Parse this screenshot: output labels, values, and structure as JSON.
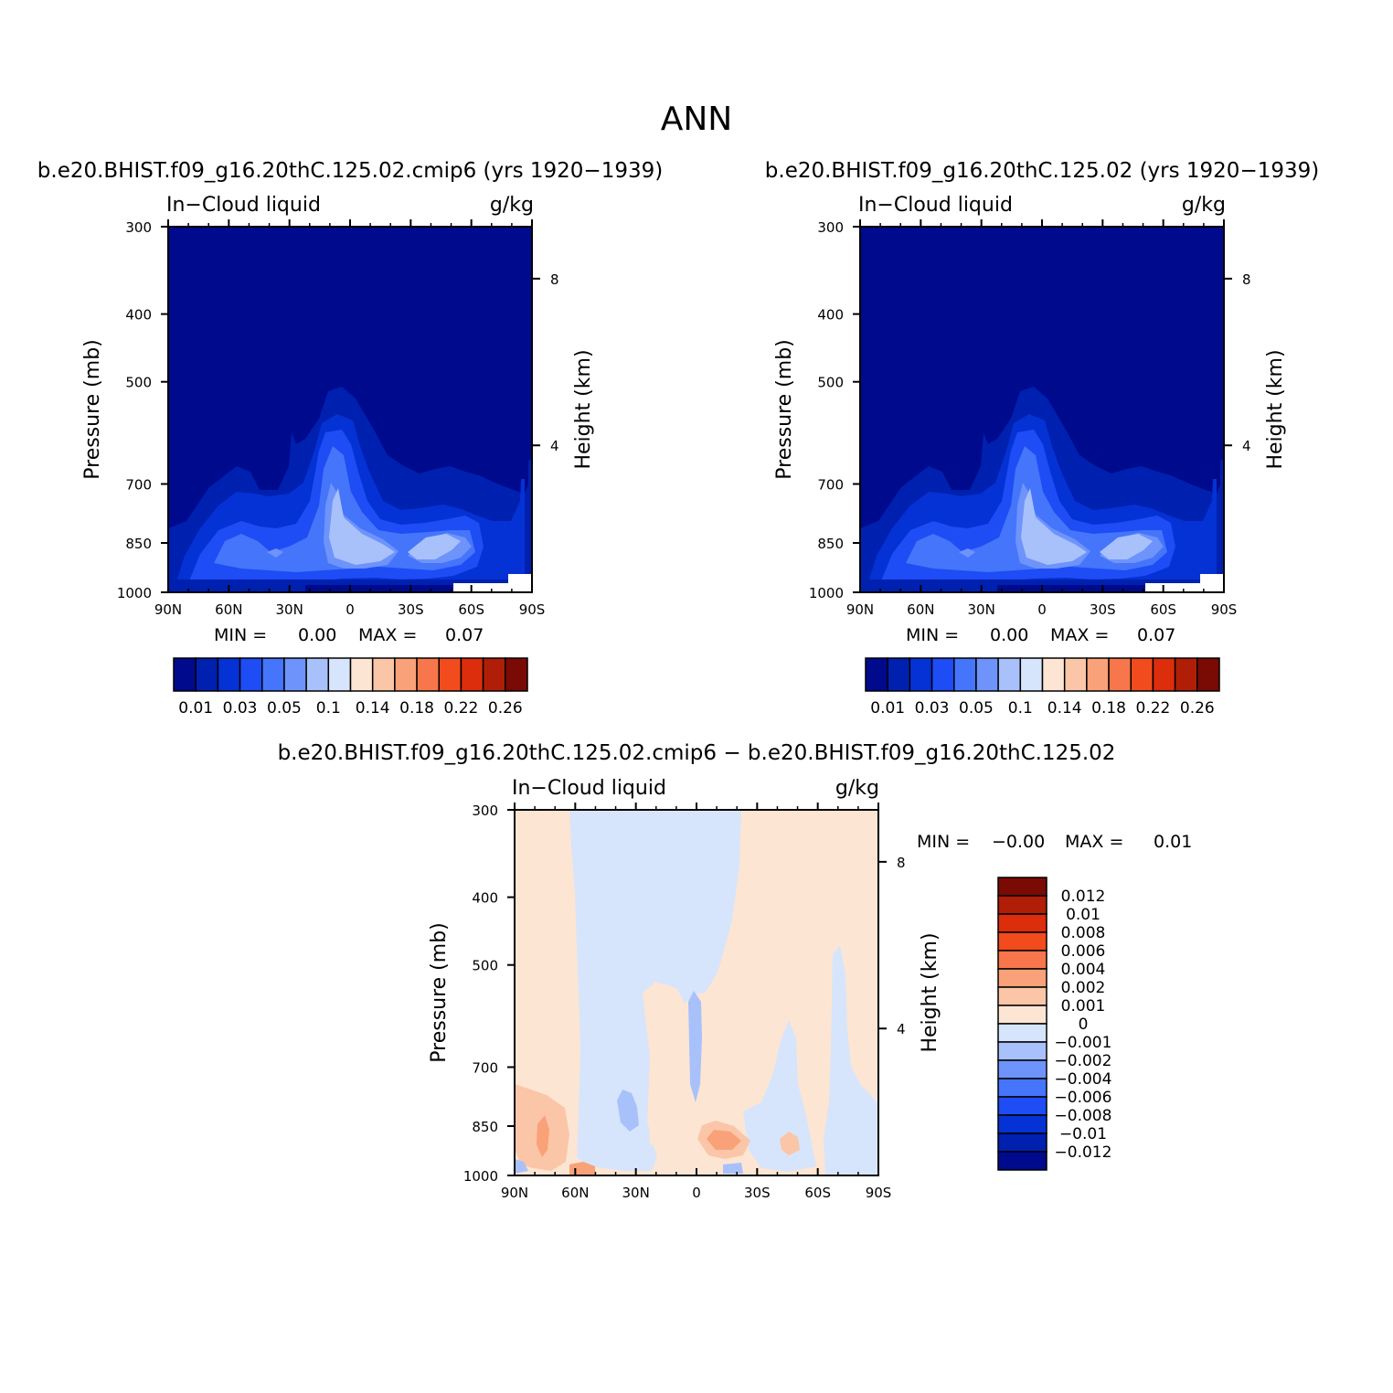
{
  "page_title": "ANN",
  "chart_data": [
    {
      "type": "heatmap",
      "title": "b.e20.BHIST.f09_g16.20thC.125.02.cmip6 (yrs 1920−1939)",
      "variable": "In−Cloud liquid",
      "units": "g/kg",
      "ylabel": "Pressure (mb)",
      "y2label": "Height (km)",
      "x_tick_labels": [
        "90N",
        "60N",
        "30N",
        "0",
        "30S",
        "60S",
        "90S"
      ],
      "x_ticks": [
        90,
        60,
        30,
        0,
        -30,
        -60,
        -90
      ],
      "y_tick_labels": [
        "300",
        "400",
        "500",
        "700",
        "850",
        "1000"
      ],
      "y_ticks": [
        300,
        400,
        500,
        700,
        850,
        1000
      ],
      "y2_tick_labels": [
        "8",
        "4"
      ],
      "y2_ticks": [
        8,
        4
      ],
      "y_scale": "log (pressure)",
      "xlim": [
        90,
        -90
      ],
      "ylim": [
        1000,
        300
      ],
      "min_label": "MIN =",
      "min_value": "0.00",
      "max_label": "MAX =",
      "max_value": "0.07",
      "colorbar": {
        "orientation": "horizontal",
        "levels": [
          0.01,
          0.02,
          0.03,
          0.04,
          0.05,
          0.07,
          0.1,
          0.12,
          0.14,
          0.16,
          0.18,
          0.2,
          0.22,
          0.24,
          0.26
        ],
        "tick_labels": [
          "0.01",
          "0.03",
          "0.05",
          "0.1",
          "0.14",
          "0.18",
          "0.22",
          "0.26"
        ],
        "colors": [
          "#000a8c",
          "#0020b0",
          "#0532d4",
          "#1e4cf5",
          "#4575fb",
          "#6e94fb",
          "#a8c1fb",
          "#d6e5fb",
          "#fde5d3",
          "#fbc6a7",
          "#f9a178",
          "#f7764b",
          "#f24b1e",
          "#dc2d0c",
          "#b01e08",
          "#7a0a04"
        ]
      }
    },
    {
      "type": "heatmap",
      "title": "b.e20.BHIST.f09_g16.20thC.125.02 (yrs 1920−1939)",
      "variable": "In−Cloud liquid",
      "units": "g/kg",
      "ylabel": "Pressure (mb)",
      "y2label": "Height (km)",
      "x_tick_labels": [
        "90N",
        "60N",
        "30N",
        "0",
        "30S",
        "60S",
        "90S"
      ],
      "x_ticks": [
        90,
        60,
        30,
        0,
        -30,
        -60,
        -90
      ],
      "y_tick_labels": [
        "300",
        "400",
        "500",
        "700",
        "850",
        "1000"
      ],
      "y_ticks": [
        300,
        400,
        500,
        700,
        850,
        1000
      ],
      "y2_tick_labels": [
        "8",
        "4"
      ],
      "y2_ticks": [
        8,
        4
      ],
      "y_scale": "log (pressure)",
      "xlim": [
        90,
        -90
      ],
      "ylim": [
        1000,
        300
      ],
      "min_label": "MIN =",
      "min_value": "0.00",
      "max_label": "MAX =",
      "max_value": "0.07",
      "colorbar": {
        "orientation": "horizontal",
        "levels": [
          0.01,
          0.02,
          0.03,
          0.04,
          0.05,
          0.07,
          0.1,
          0.12,
          0.14,
          0.16,
          0.18,
          0.2,
          0.22,
          0.24,
          0.26
        ],
        "tick_labels": [
          "0.01",
          "0.03",
          "0.05",
          "0.1",
          "0.14",
          "0.18",
          "0.22",
          "0.26"
        ],
        "colors": [
          "#000a8c",
          "#0020b0",
          "#0532d4",
          "#1e4cf5",
          "#4575fb",
          "#6e94fb",
          "#a8c1fb",
          "#d6e5fb",
          "#fde5d3",
          "#fbc6a7",
          "#f9a178",
          "#f7764b",
          "#f24b1e",
          "#dc2d0c",
          "#b01e08",
          "#7a0a04"
        ]
      }
    },
    {
      "type": "heatmap",
      "title": "b.e20.BHIST.f09_g16.20thC.125.02.cmip6 − b.e20.BHIST.f09_g16.20thC.125.02",
      "variable": "In−Cloud liquid",
      "units": "g/kg",
      "ylabel": "Pressure (mb)",
      "y2label": "Height (km)",
      "x_tick_labels": [
        "90N",
        "60N",
        "30N",
        "0",
        "30S",
        "60S",
        "90S"
      ],
      "x_ticks": [
        90,
        60,
        30,
        0,
        -30,
        -60,
        -90
      ],
      "y_tick_labels": [
        "300",
        "400",
        "500",
        "700",
        "850",
        "1000"
      ],
      "y_ticks": [
        300,
        400,
        500,
        700,
        850,
        1000
      ],
      "y2_tick_labels": [
        "8",
        "4"
      ],
      "y2_ticks": [
        8,
        4
      ],
      "y_scale": "log (pressure)",
      "xlim": [
        90,
        -90
      ],
      "ylim": [
        1000,
        300
      ],
      "min_label": "MIN =",
      "min_value": "−0.00",
      "max_label": "MAX =",
      "max_value": "0.01",
      "colorbar": {
        "orientation": "vertical",
        "levels": [
          0.012,
          0.01,
          0.008,
          0.006,
          0.004,
          0.002,
          0.001,
          0,
          -0.001,
          -0.002,
          -0.004,
          -0.006,
          -0.008,
          -0.01,
          -0.012
        ],
        "tick_labels": [
          "0.012",
          "0.01",
          "0.008",
          "0.006",
          "0.004",
          "0.002",
          "0.001",
          "0",
          "−0.001",
          "−0.002",
          "−0.004",
          "−0.006",
          "−0.008",
          "−0.01",
          "−0.012"
        ],
        "colors": [
          "#7a0a04",
          "#b01e08",
          "#dc2d0c",
          "#f24b1e",
          "#f7764b",
          "#f9a178",
          "#fbc6a7",
          "#fde5d3",
          "#d6e5fb",
          "#a8c1fb",
          "#6e94fb",
          "#4575fb",
          "#1e4cf5",
          "#0532d4",
          "#0020b0",
          "#000a8c"
        ]
      }
    }
  ]
}
